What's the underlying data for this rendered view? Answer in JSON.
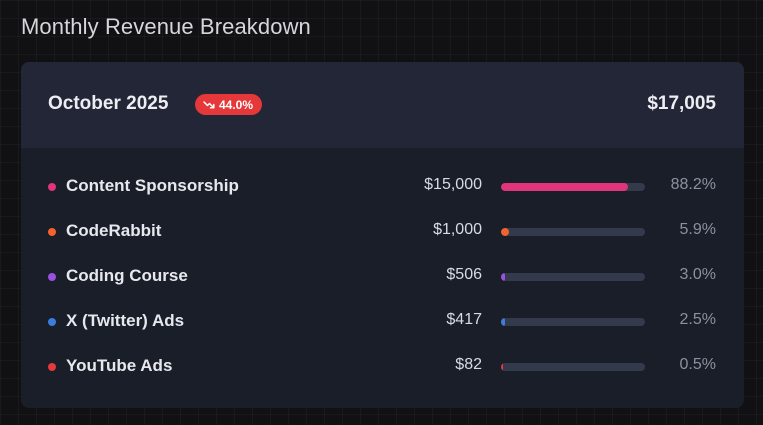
{
  "page": {
    "title": "Monthly Revenue Breakdown"
  },
  "summary": {
    "period": "October 2025",
    "change": "44.0%",
    "change_direction": "down",
    "change_icon": "trending-down-icon",
    "change_color": "#e5383b",
    "total": "$17,005"
  },
  "items": [
    {
      "name": "Content Sponsorship",
      "amount": "$15,000",
      "percent": "88.2%",
      "share": 0.882,
      "color": "#e0357a"
    },
    {
      "name": "CodeRabbit",
      "amount": "$1,000",
      "percent": "5.9%",
      "share": 0.059,
      "color": "#f4622e"
    },
    {
      "name": "Coding Course",
      "amount": "$506",
      "percent": "3.0%",
      "share": 0.03,
      "color": "#9b51e0"
    },
    {
      "name": "X (Twitter) Ads",
      "amount": "$417",
      "percent": "2.5%",
      "share": 0.025,
      "color": "#3b7ddd"
    },
    {
      "name": "YouTube Ads",
      "amount": "$82",
      "percent": "0.5%",
      "share": 0.005,
      "color": "#e5393b"
    }
  ]
}
